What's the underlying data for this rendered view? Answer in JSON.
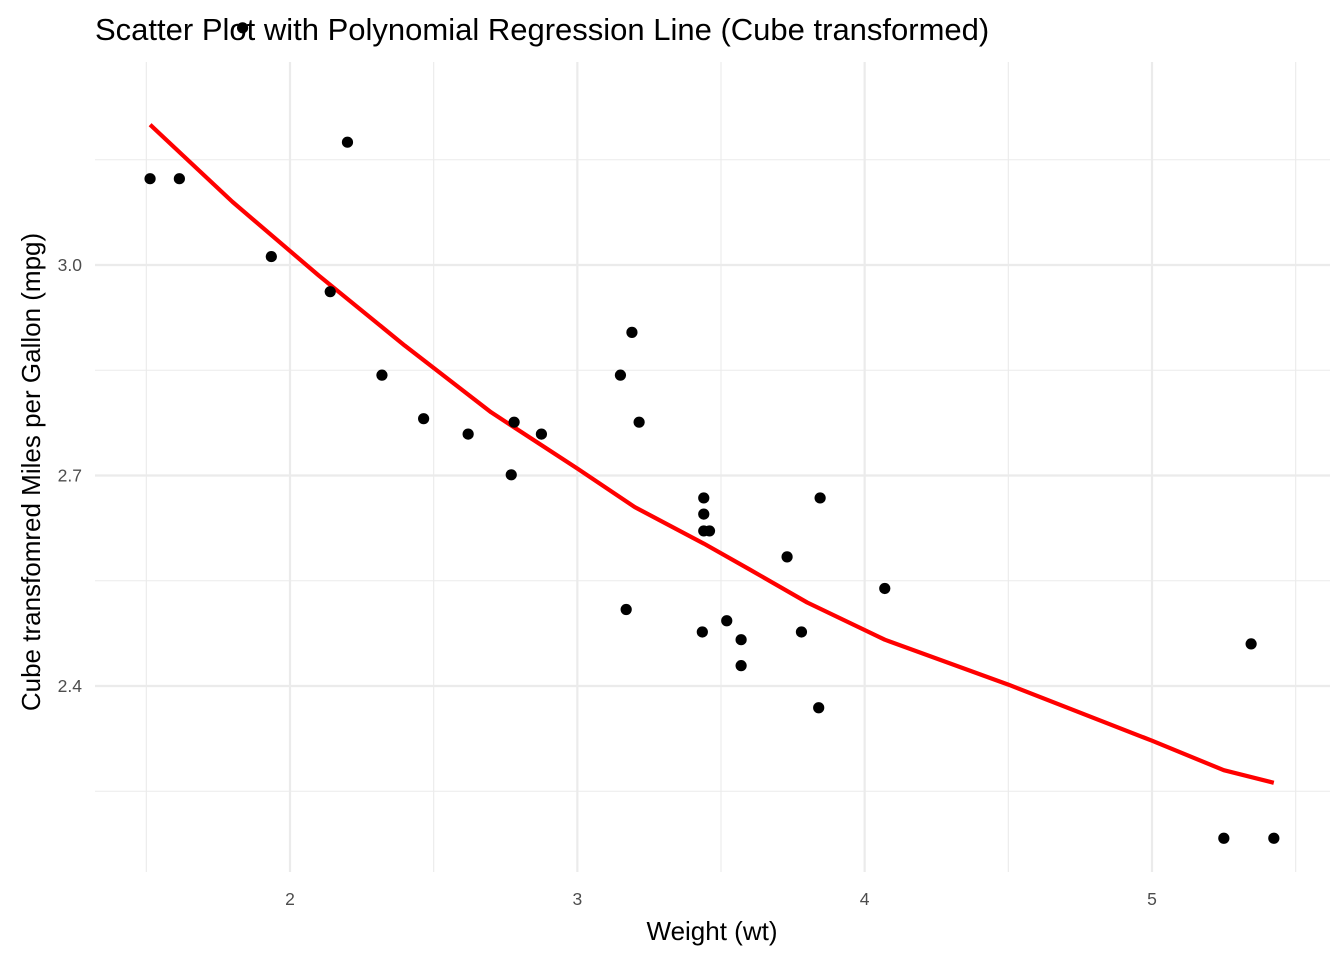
{
  "chart_data": {
    "type": "scatter",
    "title": "Scatter Plot with Polynomial Regression Line (Cube transformed)",
    "xlabel": "Weight (wt)",
    "ylabel": "Cube transfomred Miles per Gallon (mpg)",
    "xlim": [
      1.3,
      5.6
    ],
    "ylim": [
      2.13,
      3.46
    ],
    "x_ticks": [
      2,
      3,
      4,
      5
    ],
    "x_tick_labels": [
      "2",
      "3",
      "4",
      "5"
    ],
    "x_minor_ticks": [
      1.5,
      2.5,
      3.5,
      4.5,
      5.5
    ],
    "y_ticks": [
      2.4,
      2.7,
      3.0
    ],
    "y_tick_labels": [
      "2.4",
      "2.7",
      "3.0"
    ],
    "y_minor_ticks": [
      2.25,
      2.55,
      2.85,
      3.15
    ],
    "grid": true,
    "legend": "none",
    "series": [
      {
        "kind": "points",
        "color": "#000000",
        "x": [
          1.513,
          1.615,
          1.835,
          1.935,
          2.14,
          2.2,
          2.32,
          2.465,
          2.62,
          2.77,
          2.78,
          2.875,
          3.15,
          3.17,
          3.19,
          3.215,
          3.435,
          3.44,
          3.44,
          3.44,
          3.46,
          3.52,
          3.57,
          3.57,
          3.73,
          3.78,
          3.84,
          3.845,
          4.07,
          5.25,
          5.345,
          5.424
        ],
        "y": [
          3.123,
          3.123,
          3.338,
          3.012,
          2.962,
          3.175,
          2.843,
          2.781,
          2.759,
          2.701,
          2.776,
          2.759,
          2.843,
          2.509,
          2.904,
          2.776,
          2.477,
          2.668,
          2.645,
          2.621,
          2.621,
          2.493,
          2.466,
          2.429,
          2.584,
          2.477,
          2.369,
          2.668,
          2.539,
          2.183,
          2.46,
          2.183
        ]
      },
      {
        "kind": "line",
        "color": "#ff0000",
        "x": [
          1.513,
          1.8,
          2.1,
          2.4,
          2.7,
          3.0,
          3.2,
          3.44,
          3.6,
          3.8,
          4.07,
          4.5,
          5.0,
          5.25,
          5.424
        ],
        "y": [
          3.2,
          3.09,
          2.985,
          2.885,
          2.79,
          2.71,
          2.655,
          2.603,
          2.566,
          2.519,
          2.466,
          2.402,
          2.322,
          2.28,
          2.262
        ]
      }
    ]
  }
}
